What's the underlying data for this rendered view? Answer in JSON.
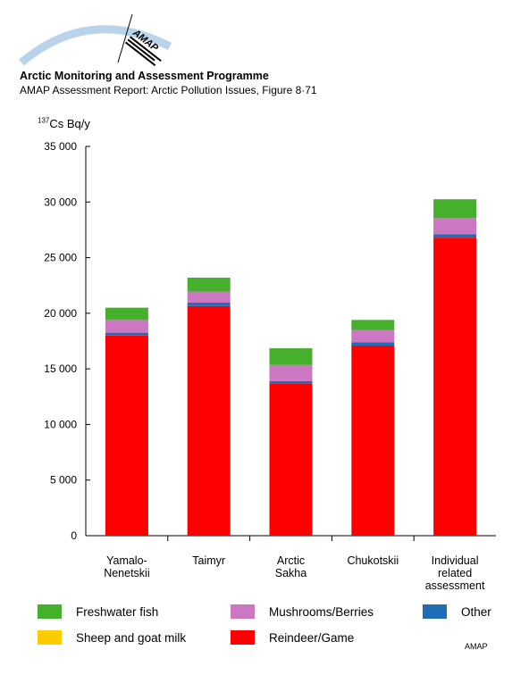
{
  "header": {
    "title": "Arctic Monitoring and Assessment Programme",
    "subtitle": "AMAP Assessment Report: Arctic Pollution Issues, Figure 8·71",
    "logo_text": "AMAP"
  },
  "y_axis_label": {
    "superscript": "137",
    "text": "Cs Bq/y"
  },
  "credit": "AMAP",
  "colors": {
    "reindeer": "#ff0000",
    "sheep": "#ffcc00",
    "other": "#1f6eb5",
    "mushrooms": "#cc77c2",
    "fish": "#44b02c"
  },
  "chart_data": {
    "type": "bar",
    "stacked": true,
    "ylim": [
      0,
      35000
    ],
    "yticks": [
      0,
      5000,
      10000,
      15000,
      20000,
      25000,
      30000,
      35000
    ],
    "ytick_labels": [
      "0",
      "5 000",
      "10 000",
      "15 000",
      "20 000",
      "25 000",
      "30 000",
      "35 000"
    ],
    "grid": false,
    "legend_placement": "bottom",
    "categories": [
      [
        "Yamalo-",
        "Nenetskii"
      ],
      [
        "Taimyr"
      ],
      [
        "Arctic",
        "Sakha"
      ],
      [
        "Chukotskii"
      ],
      [
        "Individual",
        "related",
        "assessment"
      ]
    ],
    "series": [
      {
        "name": "Reindeer/Game",
        "color": "#ff0000",
        "values": [
          18000,
          20650,
          13650,
          17100,
          26800
        ]
      },
      {
        "name": "Sheep and goat milk",
        "color": "#ffcc00",
        "values": [
          0,
          0,
          0,
          0,
          0
        ]
      },
      {
        "name": "Other",
        "color": "#1f6eb5",
        "values": [
          250,
          300,
          250,
          300,
          300
        ]
      },
      {
        "name": "Mushrooms/Berries",
        "color": "#cc77c2",
        "values": [
          1150,
          1000,
          1450,
          1100,
          1450
        ]
      },
      {
        "name": "Freshwater fish",
        "color": "#44b02c",
        "values": [
          1100,
          1250,
          1500,
          900,
          1700
        ]
      }
    ]
  },
  "legend": [
    {
      "label": "Freshwater fish",
      "color": "#44b02c"
    },
    {
      "label": "Mushrooms/Berries",
      "color": "#cc77c2"
    },
    {
      "label": "Other",
      "color": "#1f6eb5"
    },
    {
      "label": "Sheep and goat milk",
      "color": "#ffcc00"
    },
    {
      "label": "Reindeer/Game",
      "color": "#ff0000"
    }
  ]
}
